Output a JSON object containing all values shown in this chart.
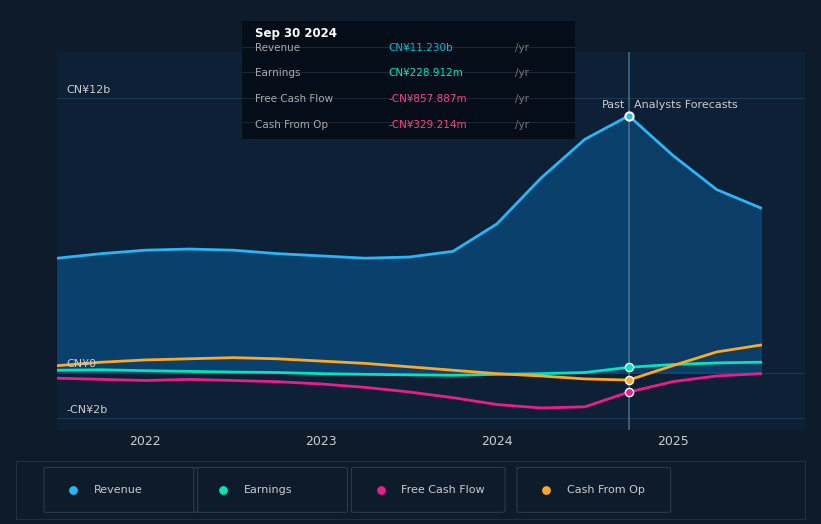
{
  "bg_color": "#0d1b2a",
  "plot_bg_color": "#0d2035",
  "grid_color": "#1e3a50",
  "text_color": "#cccccc",
  "title_color": "#ffffff",
  "tooltip": {
    "date": "Sep 30 2024",
    "revenue_label": "Revenue",
    "revenue_value": "CN¥11.230b",
    "revenue_color": "#00bcd4",
    "earnings_label": "Earnings",
    "earnings_value": "CN¥228.912m",
    "earnings_color": "#00e5c0",
    "fcf_label": "Free Cash Flow",
    "fcf_value": "-CN¥857.887m",
    "fcf_color": "#ff4081",
    "cfop_label": "Cash From Op",
    "cfop_value": "-CN¥329.214m",
    "cfop_color": "#ff4081",
    "yr_color": "#999999"
  },
  "ylim": [
    -2500000000.0,
    14000000000.0
  ],
  "yticks": [
    -2000000000.0,
    0,
    12000000000.0
  ],
  "ytick_labels": [
    "-CN¥2b",
    "CN¥0",
    "CN¥12b"
  ],
  "xlim_start": 2021.5,
  "xlim_end": 2025.75,
  "past_x": 2024.75,
  "past_label": "Past",
  "forecast_label": "Analysts Forecasts",
  "x_ticks": [
    2022,
    2023,
    2024,
    2025
  ],
  "x_tick_labels": [
    "2022",
    "2023",
    "2024",
    "2025"
  ],
  "revenue": {
    "x": [
      2021.5,
      2021.75,
      2022.0,
      2022.25,
      2022.5,
      2022.75,
      2023.0,
      2023.25,
      2023.5,
      2023.75,
      2024.0,
      2024.25,
      2024.5,
      2024.75,
      2025.0,
      2025.25,
      2025.5
    ],
    "y": [
      5000000000.0,
      5200000000.0,
      5350000000.0,
      5400000000.0,
      5350000000.0,
      5200000000.0,
      5100000000.0,
      5000000000.0,
      5050000000.0,
      5300000000.0,
      6500000000.0,
      8500000000.0,
      10200000000.0,
      11230000000.0,
      9500000000.0,
      8000000000.0,
      7200000000.0
    ],
    "color": "#29b6f6",
    "fill_color": "#0a4a7a",
    "fill_alpha": 0.8,
    "linewidth": 2.0
  },
  "earnings": {
    "x": [
      2021.5,
      2021.75,
      2022.0,
      2022.25,
      2022.5,
      2022.75,
      2023.0,
      2023.25,
      2023.5,
      2023.75,
      2024.0,
      2024.25,
      2024.5,
      2024.75,
      2025.0,
      2025.25,
      2025.5
    ],
    "y": [
      100000000.0,
      120000000.0,
      80000000.0,
      50000000.0,
      20000000.0,
      0.0,
      -50000000.0,
      -80000000.0,
      -100000000.0,
      -120000000.0,
      -80000000.0,
      -50000000.0,
      0.0,
      228000000.0,
      350000000.0,
      420000000.0,
      450000000.0
    ],
    "color": "#00e5c0",
    "linewidth": 2.0
  },
  "fcf": {
    "x": [
      2021.5,
      2021.75,
      2022.0,
      2022.25,
      2022.5,
      2022.75,
      2023.0,
      2023.25,
      2023.5,
      2023.75,
      2024.0,
      2024.25,
      2024.5,
      2024.75,
      2025.0,
      2025.25,
      2025.5
    ],
    "y": [
      -250000000.0,
      -300000000.0,
      -350000000.0,
      -300000000.0,
      -350000000.0,
      -400000000.0,
      -500000000.0,
      -650000000.0,
      -850000000.0,
      -1100000000.0,
      -1400000000.0,
      -1550000000.0,
      -1500000000.0,
      -857000000.0,
      -400000000.0,
      -150000000.0,
      -50000000.0
    ],
    "color": "#e91e8c",
    "linewidth": 2.0
  },
  "cashfromop": {
    "x": [
      2021.5,
      2021.75,
      2022.0,
      2022.25,
      2022.5,
      2022.75,
      2023.0,
      2023.25,
      2023.5,
      2023.75,
      2024.0,
      2024.25,
      2024.5,
      2024.75,
      2025.0,
      2025.25,
      2025.5
    ],
    "y": [
      300000000.0,
      450000000.0,
      550000000.0,
      600000000.0,
      650000000.0,
      600000000.0,
      500000000.0,
      400000000.0,
      250000000.0,
      100000000.0,
      -50000000.0,
      -150000000.0,
      -280000000.0,
      -329000000.0,
      300000000.0,
      900000000.0,
      1200000000.0
    ],
    "color": "#ffa726",
    "linewidth": 2.0
  },
  "legend": {
    "items": [
      "Revenue",
      "Earnings",
      "Free Cash Flow",
      "Cash From Op"
    ],
    "colors": [
      "#29b6f6",
      "#00e5c0",
      "#e91e8c",
      "#ffa726"
    ]
  }
}
